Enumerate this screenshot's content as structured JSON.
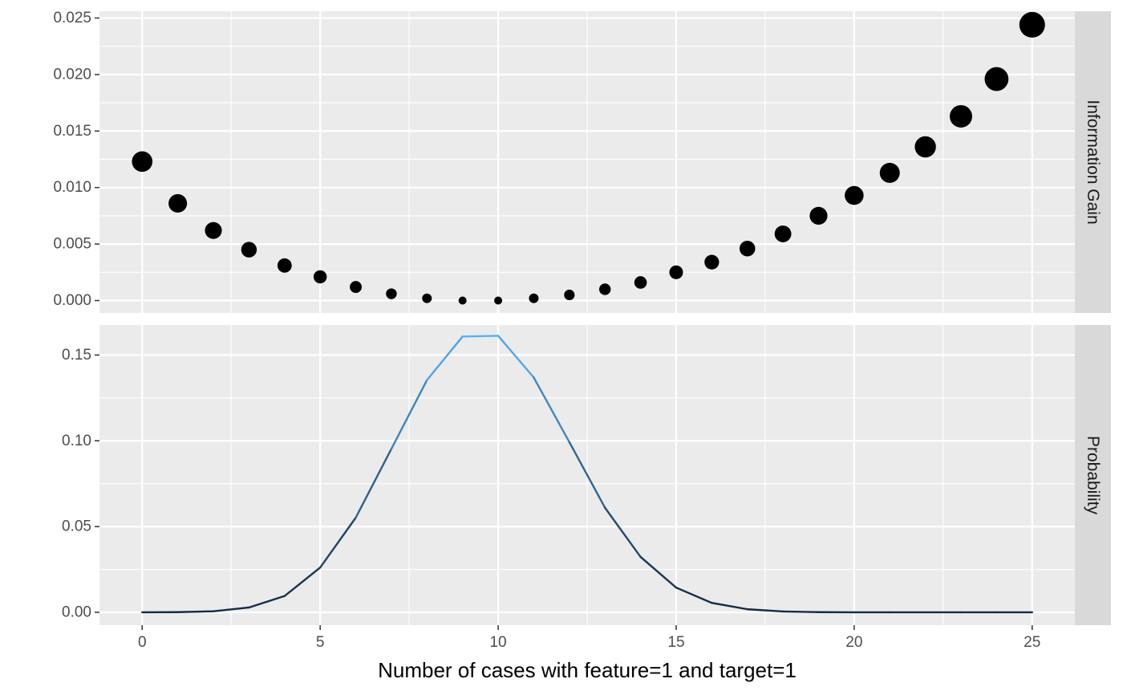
{
  "chart_data": {
    "type": "faceted",
    "xlabel": "Number of cases with feature=1 and target=1",
    "xlim": [
      -1.2,
      26.2
    ],
    "x_ticks": [
      0,
      5,
      10,
      15,
      20,
      25
    ],
    "x_tick_labels": [
      "0",
      "5",
      "10",
      "15",
      "20",
      "25"
    ],
    "grid": true,
    "panels": [
      {
        "strip": "Information Gain",
        "type": "scatter",
        "size_encodes": "Information Gain",
        "ylim": [
          -0.0011,
          0.0256
        ],
        "y_ticks": [
          0,
          0.005,
          0.01,
          0.015,
          0.02,
          0.025
        ],
        "y_tick_labels": [
          "0.000",
          "0.005",
          "0.010",
          "0.015",
          "0.020",
          "0.025"
        ],
        "series": [
          {
            "x": [
              0,
              1,
              2,
              3,
              4,
              5,
              6,
              7,
              8,
              9,
              10,
              11,
              12,
              13,
              14,
              15,
              16,
              17,
              18,
              19,
              20,
              21,
              22,
              23,
              24,
              25
            ],
            "values": [
              0.0123,
              0.0086,
              0.0062,
              0.0045,
              0.0031,
              0.0021,
              0.0012,
              0.0006,
              0.0002,
              0.0,
              0.0,
              0.0002,
              0.0005,
              0.001,
              0.0016,
              0.0025,
              0.0034,
              0.0046,
              0.0059,
              0.0075,
              0.0093,
              0.0113,
              0.0136,
              0.0163,
              0.0196,
              0.0244
            ],
            "color": "#000000"
          }
        ]
      },
      {
        "strip": "Probability",
        "type": "line",
        "color_encodes": "Probability",
        "color_low": "#132b43",
        "color_high": "#56b1f7",
        "ylim": [
          -0.0075,
          0.1675
        ],
        "y_ticks": [
          0,
          0.05,
          0.1,
          0.15
        ],
        "y_tick_labels": [
          "0.00",
          "0.05",
          "0.10",
          "0.15"
        ],
        "series": [
          {
            "x": [
              0,
              1,
              2,
              3,
              4,
              5,
              6,
              7,
              8,
              9,
              10,
              11,
              12,
              13,
              14,
              15,
              16,
              17,
              18,
              19,
              20,
              21,
              22,
              23,
              24,
              25
            ],
            "values": [
              0.0,
              0.0001,
              0.0006,
              0.0028,
              0.0095,
              0.0261,
              0.0552,
              0.0953,
              0.1354,
              0.1608,
              0.1612,
              0.1369,
              0.0992,
              0.061,
              0.0323,
              0.0144,
              0.0055,
              0.0018,
              0.0005,
              0.0001,
              0.0,
              0.0,
              0.0,
              0.0,
              0.0,
              0.0
            ]
          }
        ]
      }
    ]
  }
}
